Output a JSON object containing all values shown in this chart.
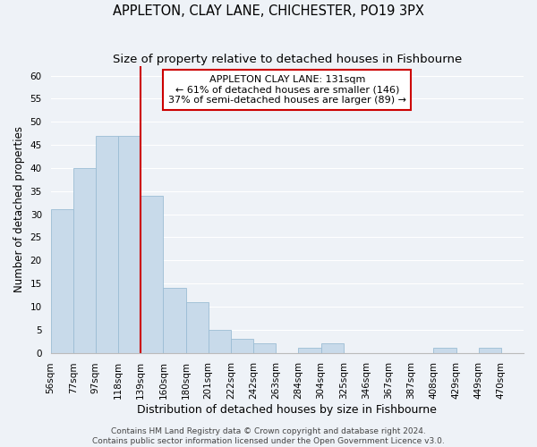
{
  "title": "APPLETON, CLAY LANE, CHICHESTER, PO19 3PX",
  "subtitle": "Size of property relative to detached houses in Fishbourne",
  "xlabel": "Distribution of detached houses by size in Fishbourne",
  "ylabel": "Number of detached properties",
  "bin_labels": [
    "56sqm",
    "77sqm",
    "97sqm",
    "118sqm",
    "139sqm",
    "160sqm",
    "180sqm",
    "201sqm",
    "222sqm",
    "242sqm",
    "263sqm",
    "284sqm",
    "304sqm",
    "325sqm",
    "346sqm",
    "367sqm",
    "387sqm",
    "408sqm",
    "429sqm",
    "449sqm",
    "470sqm"
  ],
  "bar_heights": [
    31,
    40,
    47,
    47,
    34,
    14,
    11,
    5,
    3,
    2,
    0,
    1,
    2,
    0,
    0,
    0,
    0,
    1,
    0,
    1,
    0
  ],
  "bar_color": "#c8daea",
  "bar_edge_color": "#9bbdd4",
  "reference_line_x": 4.0,
  "annotation_title": "APPLETON CLAY LANE: 131sqm",
  "annotation_line1": "← 61% of detached houses are smaller (146)",
  "annotation_line2": "37% of semi-detached houses are larger (89) →",
  "annotation_box_color": "#ffffff",
  "annotation_box_edge_color": "#cc0000",
  "ref_line_color": "#cc0000",
  "ylim": [
    0,
    62
  ],
  "yticks": [
    0,
    5,
    10,
    15,
    20,
    25,
    30,
    35,
    40,
    45,
    50,
    55,
    60
  ],
  "footer_line1": "Contains HM Land Registry data © Crown copyright and database right 2024.",
  "footer_line2": "Contains public sector information licensed under the Open Government Licence v3.0.",
  "background_color": "#eef2f7",
  "grid_color": "#ffffff",
  "title_fontsize": 10.5,
  "subtitle_fontsize": 9.5,
  "xlabel_fontsize": 9,
  "ylabel_fontsize": 8.5,
  "tick_fontsize": 7.5,
  "footer_fontsize": 6.5
}
